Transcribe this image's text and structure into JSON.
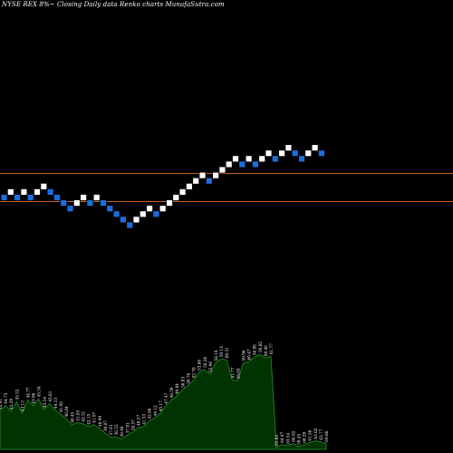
{
  "title": "NYSE REX  8%~ Closing Daily data  Renko  charts MunafaSutra.com",
  "colors": {
    "background": "#000000",
    "up_brick": "#ffffff",
    "down_brick": "#1a6ee0",
    "brick_border": "#000000",
    "level_line": "#c8651e",
    "volume_fill": "#003300",
    "volume_outline": "#1f7a1f",
    "volume_label": "#ffffff"
  },
  "chart_data": {
    "type": "renko",
    "title": "NYSE REX  8%~ Closing Daily data  Renko  charts MunafaSutra.com",
    "bricks": [
      "down",
      "up",
      "down",
      "up",
      "down",
      "up",
      "up",
      "down",
      "down",
      "down",
      "down",
      "up",
      "up",
      "down",
      "up",
      "down",
      "down",
      "down",
      "down",
      "down",
      "up",
      "up",
      "up",
      "down",
      "up",
      "up",
      "up",
      "up",
      "up",
      "up",
      "up",
      "down",
      "up",
      "up",
      "up",
      "up",
      "down",
      "up",
      "down",
      "up",
      "up",
      "down",
      "up",
      "up",
      "down",
      "down",
      "up",
      "up",
      "down"
    ],
    "horizontal_levels": [
      "upper",
      "lower"
    ],
    "volume_labels": [
      "42.41",
      "44.73",
      "43.29",
      "45.52",
      "43.12",
      "44.77",
      "43.96",
      "45.34",
      "42.54",
      "43.81",
      "44.13",
      "41.92",
      "40.84",
      "40.45",
      "41.85",
      "42.31",
      "42.15",
      "41.97",
      "40.99",
      "39.87",
      "37.61",
      "36.55",
      "38.48",
      "37.91",
      "38.57",
      "40.27",
      "41.53",
      "42.66",
      "44.12",
      "45.17",
      "47.47",
      "48.59",
      "49.84",
      "50.93",
      "50.76",
      "52.78",
      "53.86",
      "56.28",
      "55.94",
      "58.14",
      "59.13",
      "60.31",
      "61.77",
      "58.64",
      "59.96",
      "60.47",
      "58.98",
      "59.82",
      "60.46",
      "61.77",
      "63.84",
      "64.47",
      "63.54",
      "60.92",
      "59.45",
      "60.29",
      "61.56",
      "63.02",
      "63.77",
      "64.66"
    ],
    "volume_heights": [
      0.4,
      0.46,
      0.4,
      0.5,
      0.38,
      0.52,
      0.46,
      0.53,
      0.42,
      0.48,
      0.41,
      0.37,
      0.32,
      0.26,
      0.28,
      0.27,
      0.24,
      0.26,
      0.22,
      0.17,
      0.13,
      0.13,
      0.11,
      0.15,
      0.18,
      0.23,
      0.24,
      0.3,
      0.33,
      0.38,
      0.46,
      0.52,
      0.56,
      0.63,
      0.67,
      0.73,
      0.81,
      0.84,
      0.79,
      0.91,
      0.95,
      0.94,
      0.73,
      0.72,
      0.91,
      0.92,
      0.97,
      1.0,
      0.96,
      0.98,
      0.02,
      0.05,
      0.04,
      0.06,
      0.03,
      0.05,
      0.07,
      0.09,
      0.08,
      0.06
    ]
  }
}
